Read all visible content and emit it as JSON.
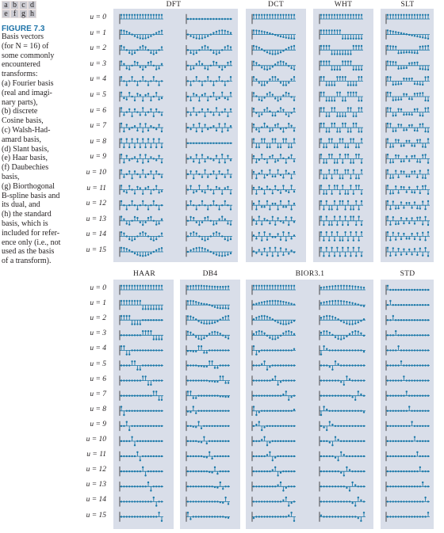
{
  "figure": {
    "letters_row1": [
      "a",
      "b",
      "c",
      "d"
    ],
    "letters_row2": [
      "e",
      "f",
      "g",
      "h"
    ],
    "label": "FIGURE 7.3",
    "caption_lines": [
      "Basis vectors",
      "(for N = 16) of",
      "some commonly",
      "encountered",
      "transforms:",
      "(a) Fourier basis",
      "(real and imagi-",
      "nary parts),",
      "(b) discrete",
      "Cosine basis,",
      "(c) Walsh-Had-",
      "amard basis,",
      "(d) Slant basis,",
      "(e) Haar basis,",
      "(f) Daubechies",
      "basis,",
      "(g) Biorthogonal",
      "B-spline basis and",
      "its dual, and",
      "(h) the standard",
      "basis, which is",
      "included for refer-",
      "ence only (i.e., not",
      "used as the basis",
      "of a transform)."
    ]
  },
  "top_section": {
    "titles": [
      "DFT",
      "DCT",
      "WHT",
      "SLT"
    ],
    "row_labels": [
      "u = 0",
      "u = 1",
      "u = 2",
      "u = 3",
      "u = 4",
      "u = 5",
      "u = 6",
      "u = 7",
      "u = 8",
      "u = 9",
      "u = 10",
      "u = 11",
      "u = 12",
      "u = 13",
      "u = 14",
      "u = 15"
    ]
  },
  "bottom_section": {
    "titles": [
      "HAAR",
      "DB4",
      "BIOR3.1",
      "STD"
    ],
    "row_labels": [
      "u = 0",
      "u = 1",
      "u = 2",
      "u = 3",
      "u = 4",
      "u = 5",
      "u = 6",
      "u = 7",
      "u = 8",
      "u = 9",
      "u = 10",
      "u = 11",
      "u = 12",
      "u = 13",
      "u = 14",
      "u = 15"
    ]
  },
  "colors": {
    "panel_background": "#d9dee9",
    "stem": "#1a78a8",
    "axis": "#231f20",
    "figure_label": "#1e73a8"
  }
}
